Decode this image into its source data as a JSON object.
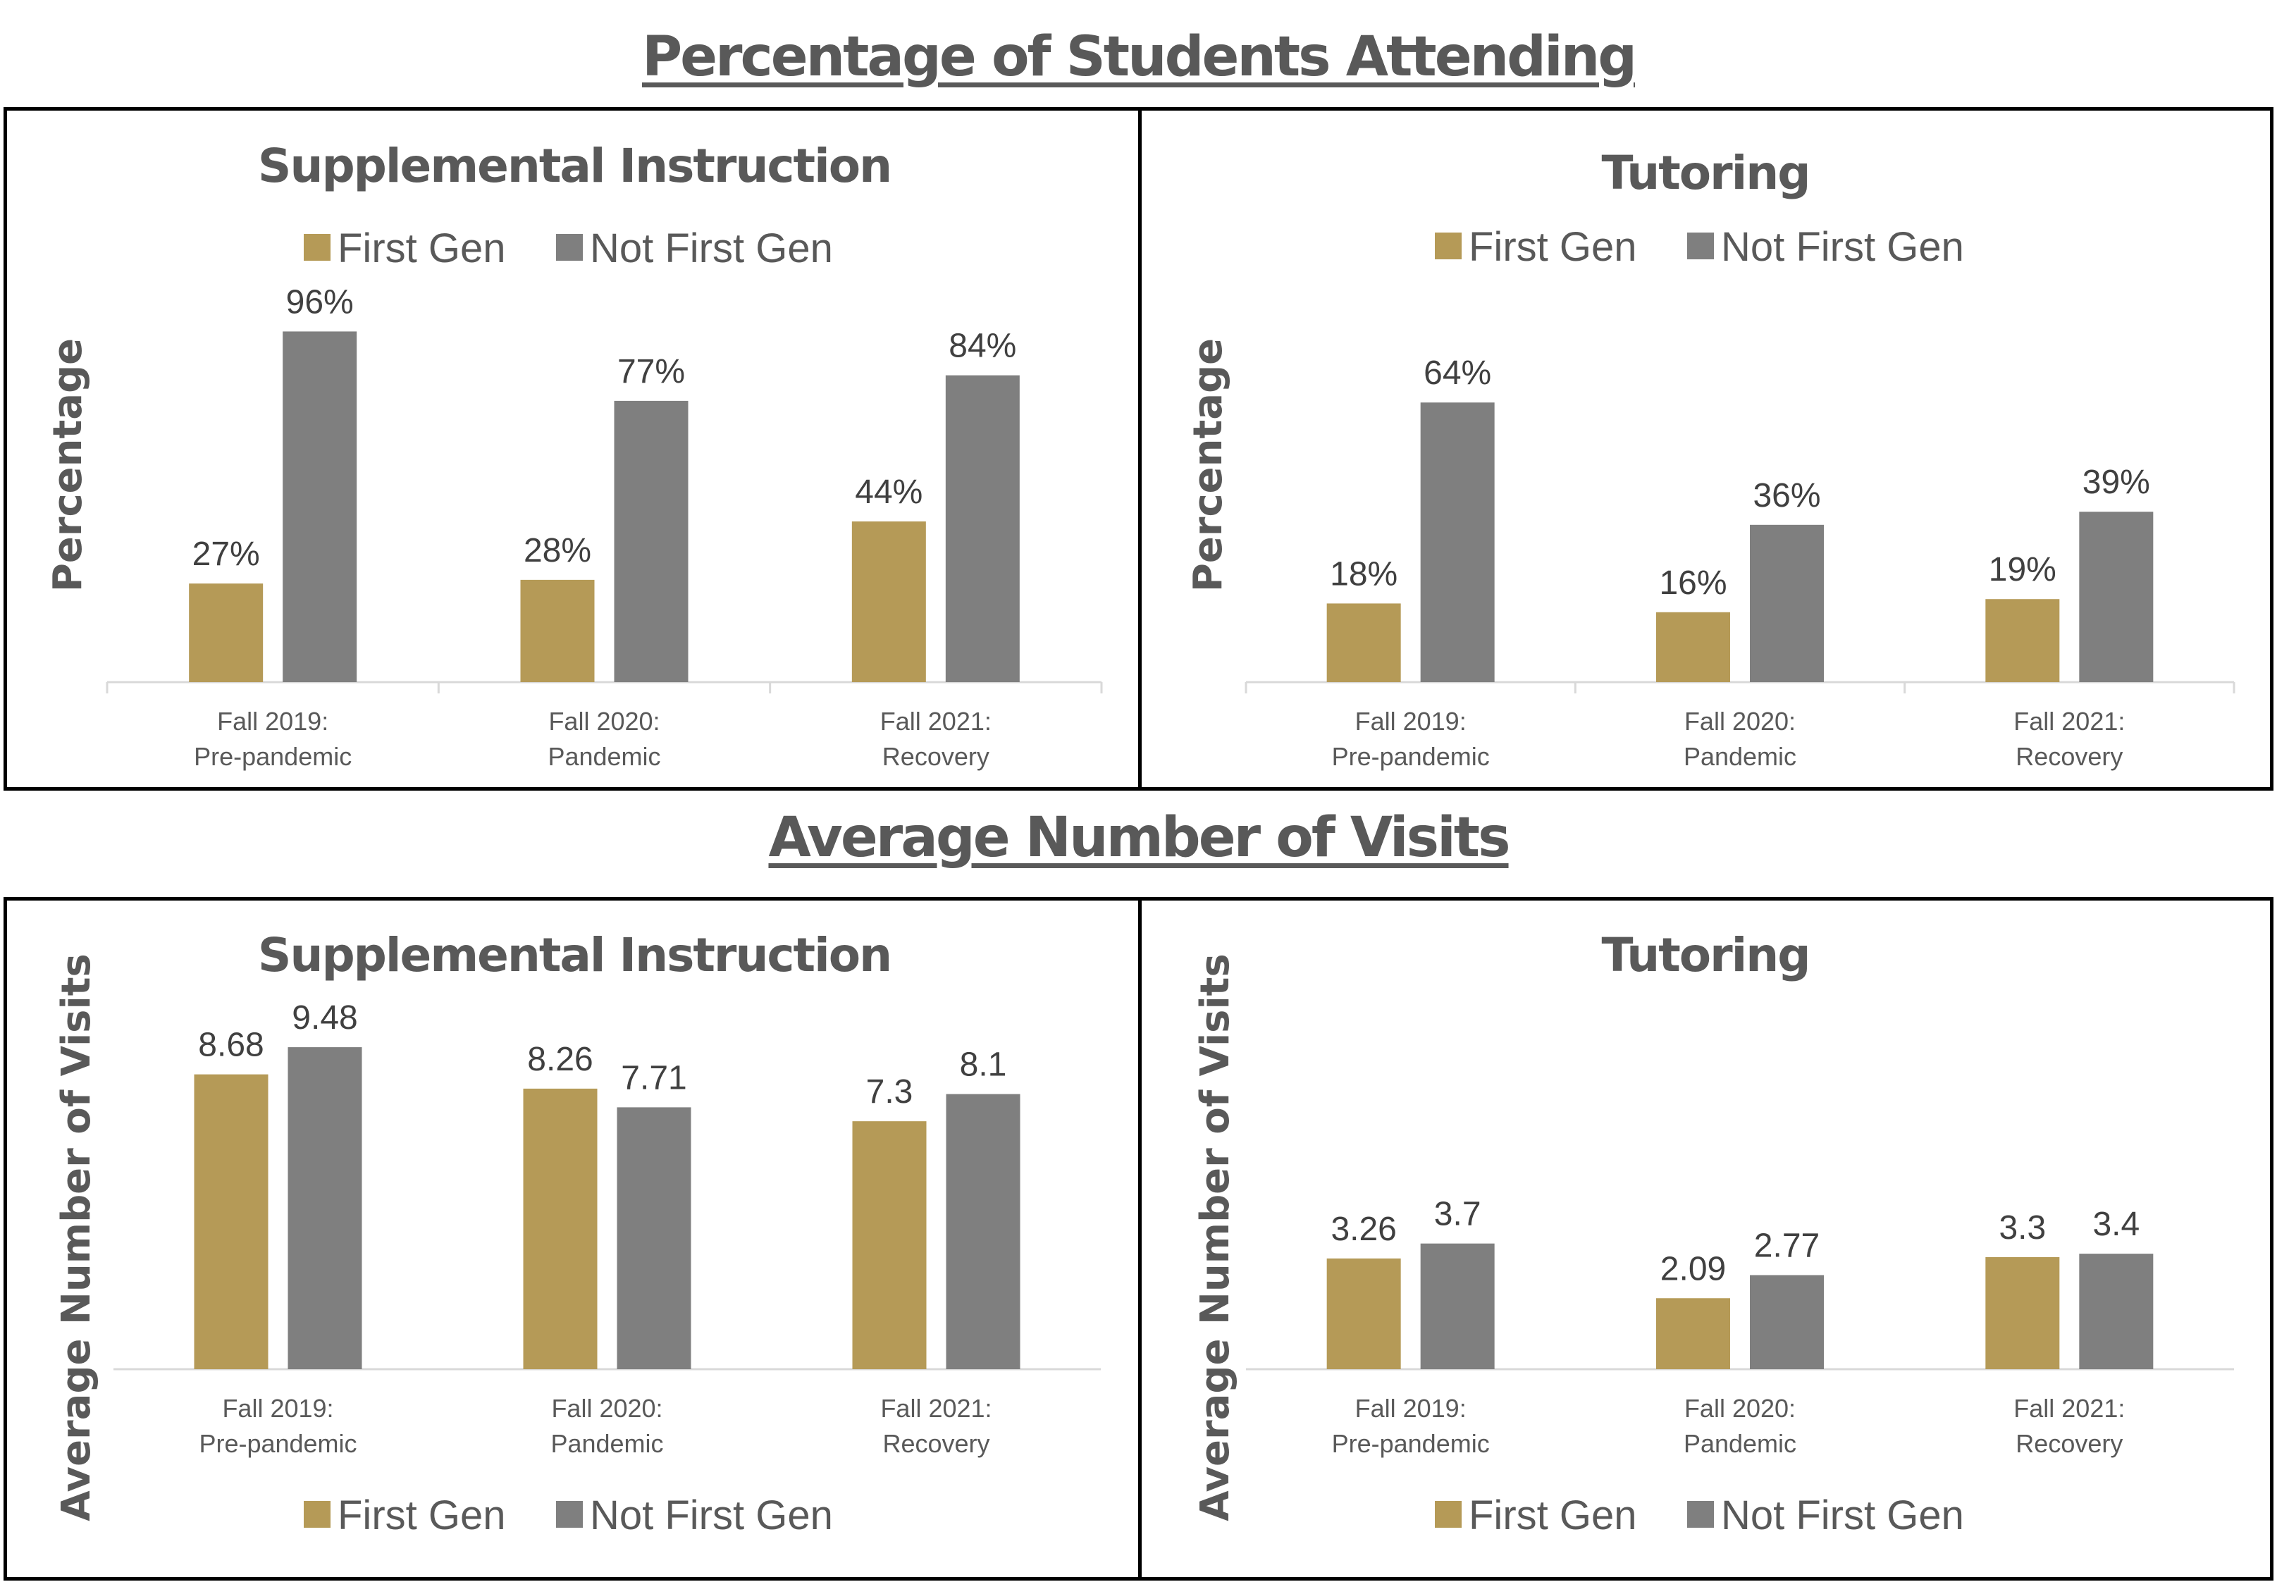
{
  "titles": {
    "top": "Percentage of Students Attending",
    "bottom": "Average Number of Visits"
  },
  "colors": {
    "first_gen": "#B59A57",
    "not_first_gen": "#7F7F7F",
    "text": "#595959",
    "data_label": "#404040",
    "axis": "#D9D9D9",
    "border": "#000000"
  },
  "chart_data": [
    {
      "id": "si-percentage",
      "type": "bar",
      "title": "Supplemental Instruction",
      "ylabel": "Percentage",
      "xlabel": "",
      "categories": [
        [
          "Fall 2019:",
          "Pre-pandemic"
        ],
        [
          "Fall 2020:",
          "Pandemic"
        ],
        [
          "Fall 2021:",
          "Recovery"
        ]
      ],
      "series": [
        {
          "name": "First Gen",
          "values": [
            27,
            28,
            44
          ],
          "labels": [
            "27%",
            "28%",
            "44%"
          ]
        },
        {
          "name": "Not First Gen",
          "values": [
            96,
            77,
            84
          ],
          "labels": [
            "96%",
            "77%",
            "84%"
          ]
        }
      ],
      "ylim": [
        0,
        120
      ],
      "legend": "top",
      "grid": false,
      "category_ticks": true
    },
    {
      "id": "tutoring-percentage",
      "type": "bar",
      "title": "Tutoring",
      "ylabel": "Percentage",
      "xlabel": "",
      "categories": [
        [
          "Fall 2019:",
          "Pre-pandemic"
        ],
        [
          "Fall 2020:",
          "Pandemic"
        ],
        [
          "Fall 2021:",
          "Recovery"
        ]
      ],
      "series": [
        {
          "name": "First Gen",
          "values": [
            18,
            16,
            19
          ],
          "labels": [
            "18%",
            "16%",
            "19%"
          ]
        },
        {
          "name": "Not First Gen",
          "values": [
            64,
            36,
            39
          ],
          "labels": [
            "64%",
            "36%",
            "39%"
          ]
        }
      ],
      "ylim": [
        0,
        100
      ],
      "legend": "top",
      "grid": false,
      "category_ticks": true
    },
    {
      "id": "si-visits",
      "type": "bar",
      "title": "Supplemental Instruction",
      "ylabel": "Average Number of Visits",
      "xlabel": "",
      "categories": [
        [
          "Fall 2019:",
          "Pre-pandemic"
        ],
        [
          "Fall 2020:",
          "Pandemic"
        ],
        [
          "Fall 2021:",
          "Recovery"
        ]
      ],
      "series": [
        {
          "name": "First Gen",
          "values": [
            8.68,
            8.26,
            7.3
          ],
          "labels": [
            "8.68",
            "8.26",
            "7.3"
          ]
        },
        {
          "name": "Not First Gen",
          "values": [
            9.48,
            7.71,
            8.1
          ],
          "labels": [
            "9.48",
            "7.71",
            "8.1"
          ]
        }
      ],
      "ylim": [
        0,
        10
      ],
      "legend": "bottom",
      "grid": false,
      "category_ticks": false
    },
    {
      "id": "tutoring-visits",
      "type": "bar",
      "title": "Tutoring",
      "ylabel": "Average Number of Visits",
      "xlabel": "",
      "categories": [
        [
          "Fall 2019:",
          "Pre-pandemic"
        ],
        [
          "Fall 2020:",
          "Pandemic"
        ],
        [
          "Fall 2021:",
          "Recovery"
        ]
      ],
      "series": [
        {
          "name": "First Gen",
          "values": [
            3.26,
            2.09,
            3.3
          ],
          "labels": [
            "3.26",
            "2.09",
            "3.3"
          ]
        },
        {
          "name": "Not First Gen",
          "values": [
            3.7,
            2.77,
            3.4
          ],
          "labels": [
            "3.7",
            "2.77",
            "3.4"
          ]
        }
      ],
      "ylim": [
        0,
        10
      ],
      "legend": "bottom",
      "grid": false,
      "category_ticks": false
    }
  ]
}
